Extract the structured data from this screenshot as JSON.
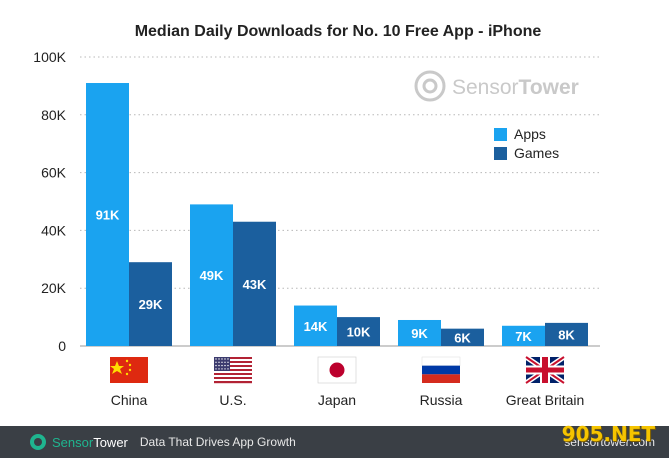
{
  "chart_data": {
    "type": "bar",
    "title": "Median Daily Downloads for No. 10 Free App - iPhone",
    "categories": [
      "China",
      "U.S.",
      "Japan",
      "Russia",
      "Great Britain"
    ],
    "series": [
      {
        "name": "Apps",
        "values": [
          91,
          49,
          14,
          9,
          7
        ],
        "labels": [
          "91K",
          "49K",
          "14K",
          "9K",
          "7K"
        ],
        "color": "#1aa3f0"
      },
      {
        "name": "Games",
        "values": [
          29,
          43,
          10,
          6,
          8
        ],
        "labels": [
          "29K",
          "43K",
          "10K",
          "6K",
          "8K"
        ],
        "color": "#1b5f9e"
      }
    ],
    "ylim": [
      0,
      100
    ],
    "yticks": [
      0,
      20,
      40,
      60,
      80,
      100
    ],
    "ytick_labels": [
      "0",
      "20K",
      "40K",
      "60K",
      "80K",
      "100K"
    ],
    "grid": true,
    "legend_position": "right",
    "xlabel": "",
    "ylabel": ""
  },
  "flags": [
    "china-flag-icon",
    "us-flag-icon",
    "japan-flag-icon",
    "russia-flag-icon",
    "uk-flag-icon"
  ],
  "watermark": {
    "brand_light": "Sensor",
    "brand_bold": "Tower"
  },
  "footer": {
    "brand_a": "Sensor",
    "brand_b": "Tower",
    "tagline": "Data That Drives App Growth",
    "site": "sensortower.com",
    "overlay": "905.NET"
  }
}
